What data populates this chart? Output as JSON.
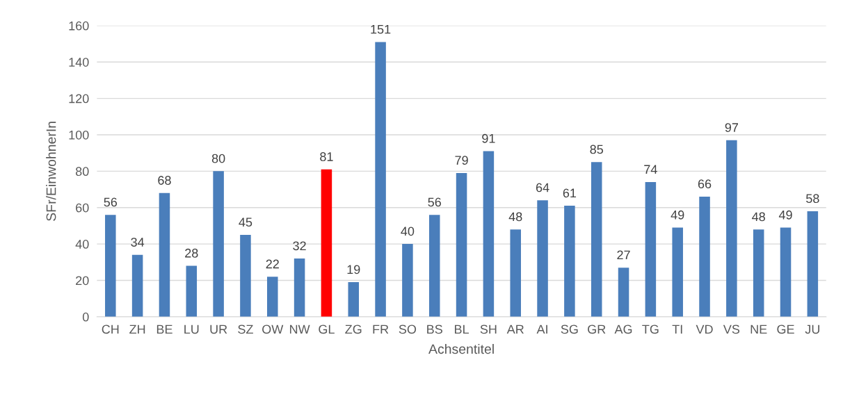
{
  "chart_data": {
    "type": "bar",
    "xlabel": "Achsentitel",
    "ylabel": "SFr/EinwohnerIn",
    "categories": [
      "CH",
      "ZH",
      "BE",
      "LU",
      "UR",
      "SZ",
      "OW",
      "NW",
      "GL",
      "ZG",
      "FR",
      "SO",
      "BS",
      "BL",
      "SH",
      "AR",
      "AI",
      "SG",
      "GR",
      "AG",
      "TG",
      "TI",
      "VD",
      "VS",
      "NE",
      "GE",
      "JU"
    ],
    "values": [
      56,
      34,
      68,
      28,
      80,
      45,
      22,
      32,
      81,
      19,
      151,
      40,
      56,
      79,
      91,
      48,
      64,
      61,
      85,
      27,
      74,
      49,
      66,
      97,
      48,
      49,
      58
    ],
    "colors": [
      "#4a7ebb",
      "#4a7ebb",
      "#4a7ebb",
      "#4a7ebb",
      "#4a7ebb",
      "#4a7ebb",
      "#4a7ebb",
      "#4a7ebb",
      "#ff0000",
      "#4a7ebb",
      "#4a7ebb",
      "#4a7ebb",
      "#4a7ebb",
      "#4a7ebb",
      "#4a7ebb",
      "#4a7ebb",
      "#4a7ebb",
      "#4a7ebb",
      "#4a7ebb",
      "#4a7ebb",
      "#4a7ebb",
      "#4a7ebb",
      "#4a7ebb",
      "#4a7ebb",
      "#4a7ebb",
      "#4a7ebb",
      "#4a7ebb"
    ],
    "ylim": [
      0,
      160
    ],
    "yticks": [
      0,
      20,
      40,
      60,
      80,
      100,
      120,
      140,
      160
    ],
    "grid": "y",
    "data_labels": true,
    "legend": false
  }
}
